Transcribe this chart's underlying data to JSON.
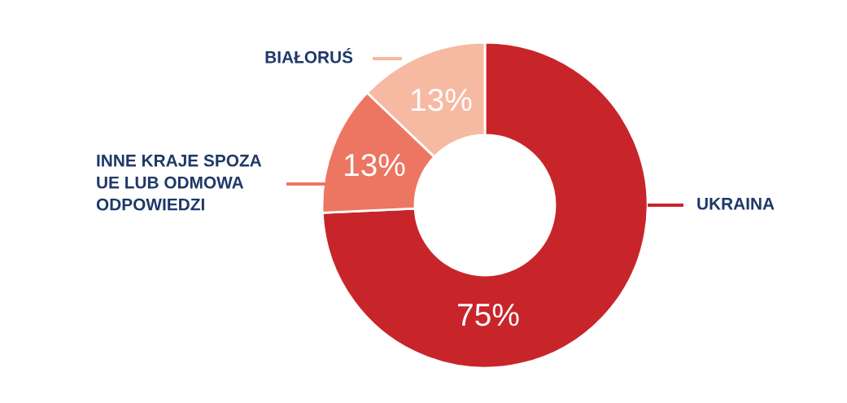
{
  "chart_data": {
    "type": "donut",
    "categories": [
      "UKRAINA",
      "INNE KRAJE SPOZA\nUE LUB ODMOWA\nODPOWIEDZI",
      "BIAŁORUŚ"
    ],
    "values": [
      75,
      13,
      13
    ],
    "colors": [
      "#c8252b",
      "#ec7661",
      "#f6b9a2"
    ],
    "value_labels": [
      "75%",
      "13%",
      "13%"
    ]
  }
}
